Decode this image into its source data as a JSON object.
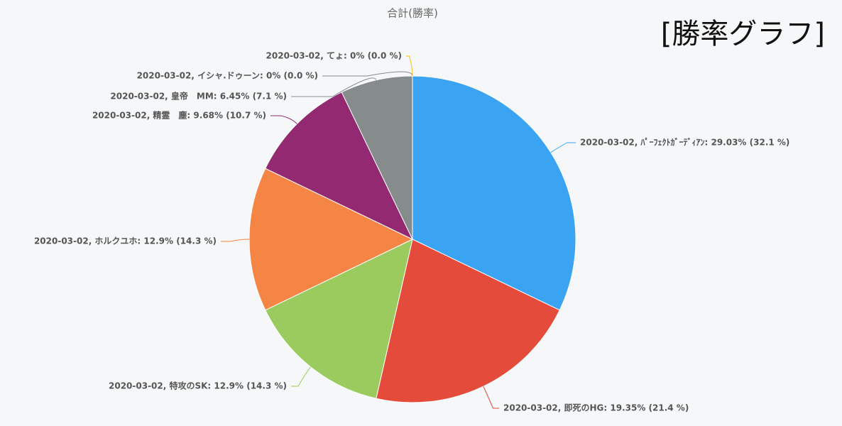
{
  "chart_data": {
    "type": "pie",
    "title": "合計(勝率)",
    "annotation": "[勝率グラフ]",
    "values": [
      29.03,
      19.35,
      12.9,
      12.9,
      9.68,
      6.45,
      0,
      0
    ],
    "value_labels": [
      "2020-03-02, ﾊﾟｰﾌｪｸﾄｶﾞｰﾃﾞｨｱﾝ: 29.03% (32.1 %)",
      "2020-03-02, 即死のHG: 19.35% (21.4 %)",
      "2020-03-02, 特攻のSK: 12.9% (14.3 %)",
      "2020-03-02, ホルクユホ: 12.9% (14.3 %)",
      "2020-03-02, 精霊　塵: 9.68% (10.7 %)",
      "2020-03-02, 皇帝　MM: 6.45% (7.1 %)",
      "2020-03-02, イシャ.ドゥーン: 0% (0.0 %)",
      "2020-03-02, てょ: 0% (0.0 %)"
    ],
    "colors": [
      "#3aa3f2",
      "#e44b3a",
      "#9bcb5e",
      "#f58545",
      "#932970",
      "#868c8c",
      "#7f8c8d",
      "#f1c40f"
    ]
  }
}
